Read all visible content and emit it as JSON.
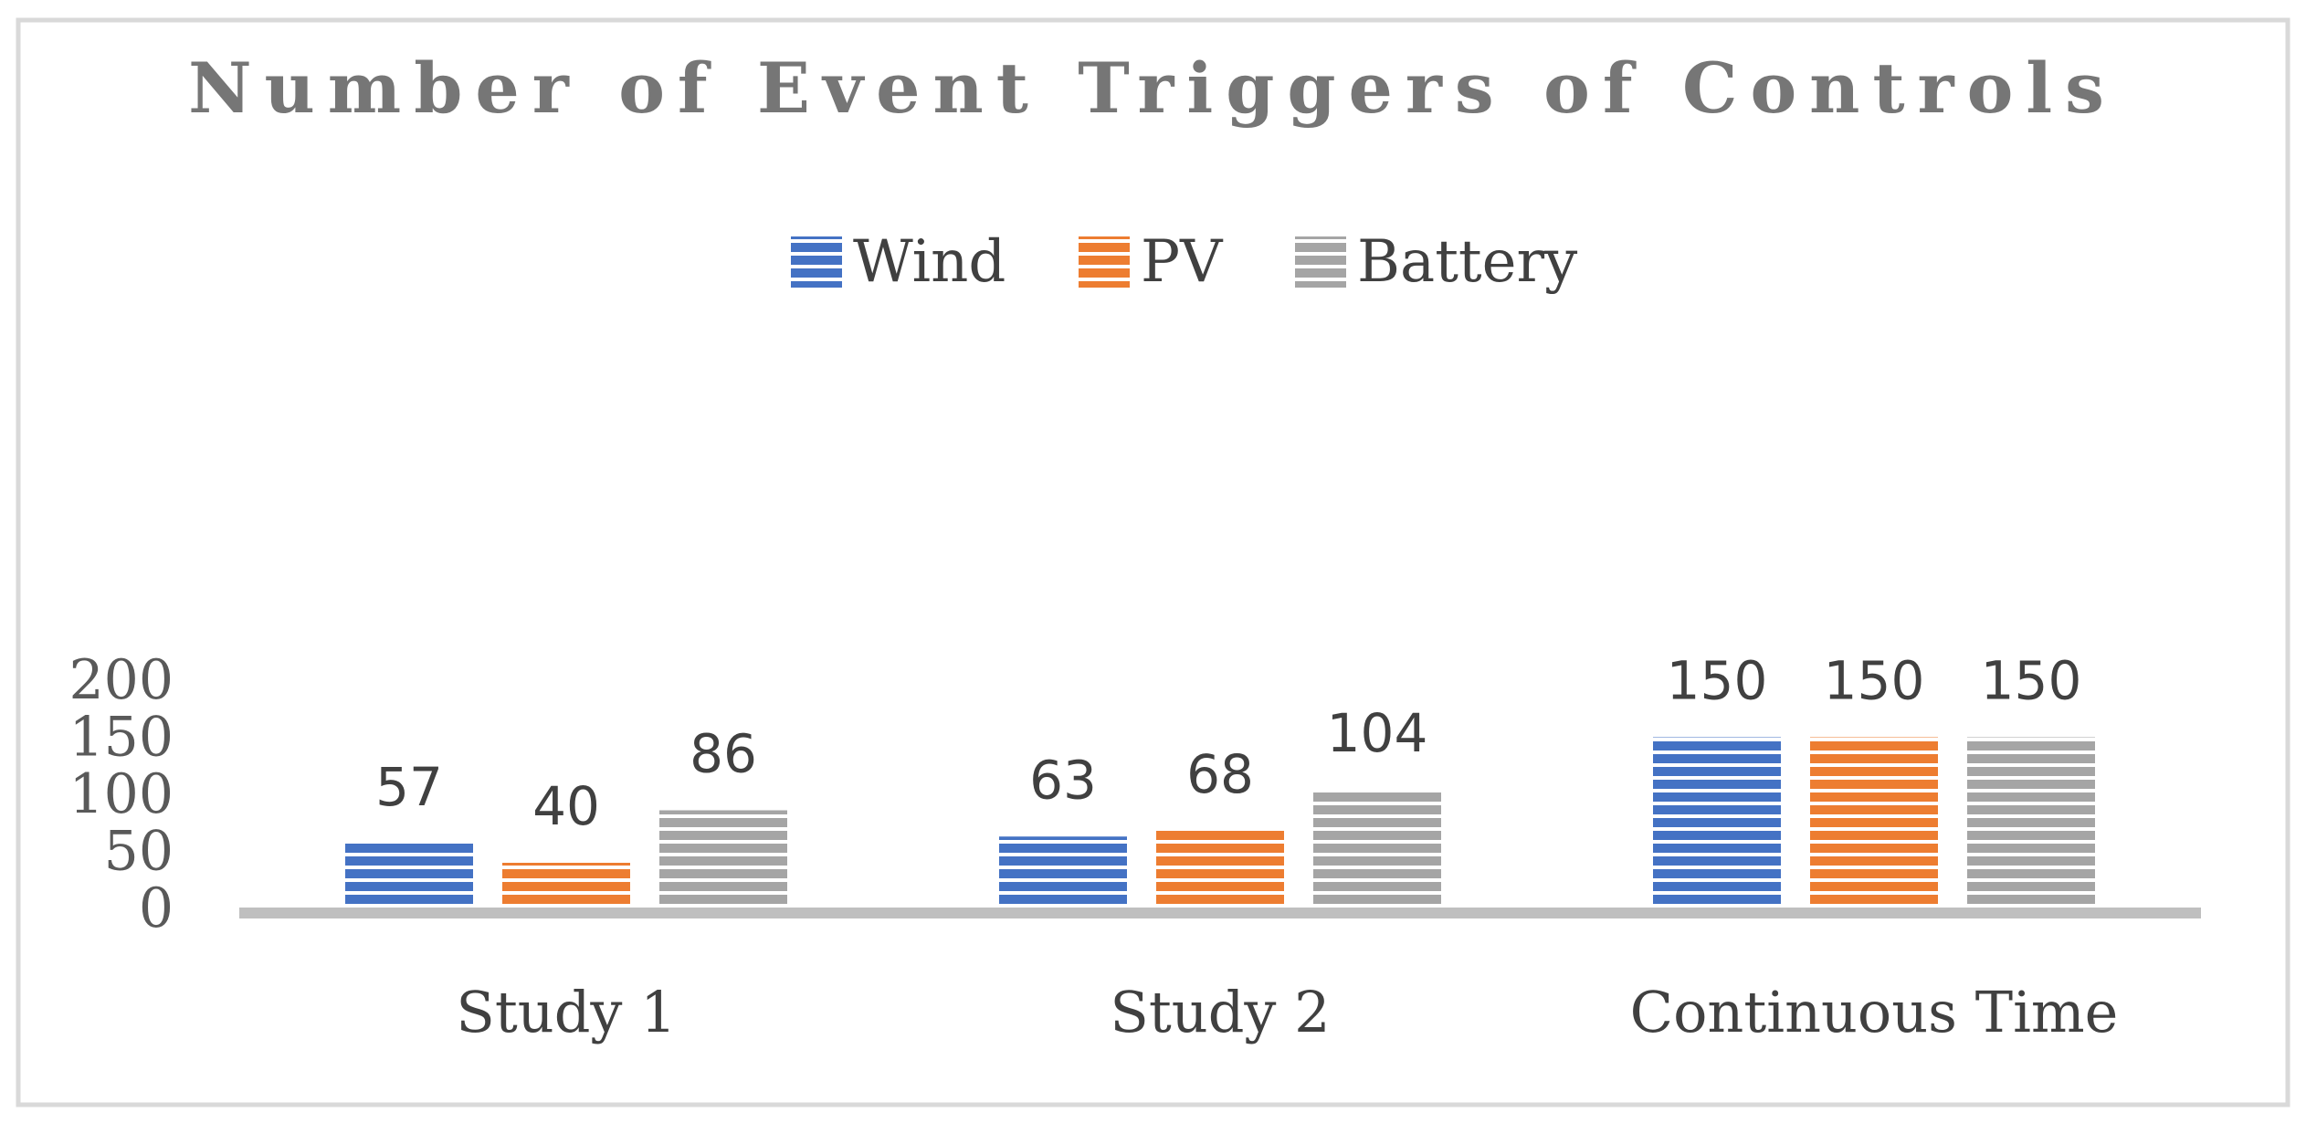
{
  "chart_data": {
    "type": "bar",
    "title": "Number of Event Triggers of Controls",
    "categories": [
      "Study 1",
      "Study 2",
      "Continuous Time"
    ],
    "series": [
      {
        "name": "Wind",
        "color": "#4472C4",
        "values": [
          57,
          63,
          150
        ]
      },
      {
        "name": "PV",
        "color": "#ED7D31",
        "values": [
          40,
          68,
          150
        ]
      },
      {
        "name": "Battery",
        "color": "#A5A5A5",
        "values": [
          86,
          104,
          150
        ]
      }
    ],
    "yticks": [
      "0",
      "50",
      "100",
      "150",
      "200"
    ],
    "ylim": [
      0,
      200
    ],
    "xlabel": "",
    "ylabel": "",
    "grid": false,
    "legend_position": "top-center",
    "data_labels": true
  }
}
